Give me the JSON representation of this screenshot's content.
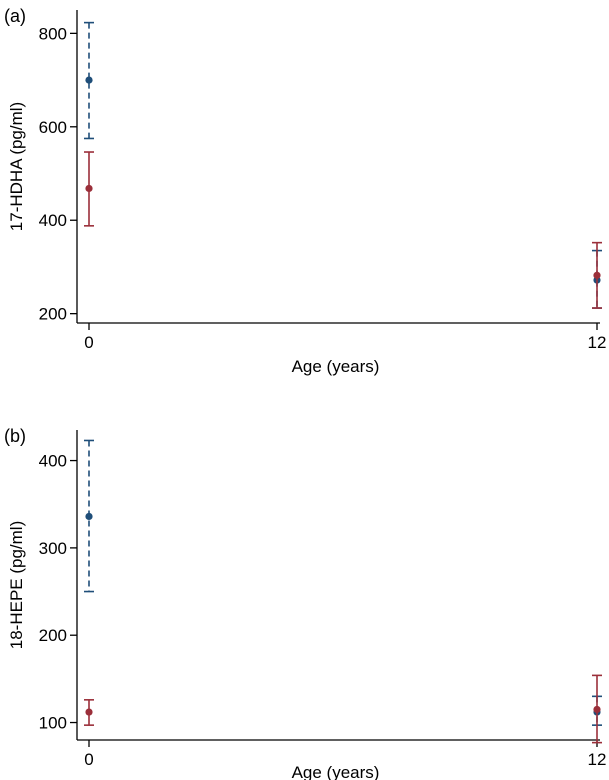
{
  "colors": {
    "blue": "#1f4e79",
    "red": "#9b2f3a"
  },
  "chart_data": [
    {
      "type": "scatter",
      "panel_label": "(a)",
      "xlabel": "Age (years)",
      "ylabel": "17-HDHA (pg/ml)",
      "x_ticks": [
        0,
        12
      ],
      "x_tick_labels": [
        "0",
        "12"
      ],
      "y_ticks": [
        200,
        400,
        600,
        800
      ],
      "y_tick_labels": [
        "200",
        "400",
        "600",
        "800"
      ],
      "xlim": [
        -0.05,
        12
      ],
      "ylim": [
        180,
        850
      ],
      "series": [
        {
          "color": "blue",
          "line_style": "dashed",
          "points": [
            {
              "x": 0,
              "y": 700,
              "low": 575,
              "high": 823
            },
            {
              "x": 12,
              "y": 272,
              "low": 212,
              "high": 335
            }
          ]
        },
        {
          "color": "red",
          "line_style": "solid",
          "points": [
            {
              "x": 0,
              "y": 468,
              "low": 388,
              "high": 546
            },
            {
              "x": 12,
              "y": 282,
              "low": 212,
              "high": 352
            }
          ]
        }
      ]
    },
    {
      "type": "scatter",
      "panel_label": "(b)",
      "xlabel": "Age (years)",
      "ylabel": "18-HEPE (pg/ml)",
      "x_ticks": [
        0,
        12
      ],
      "x_tick_labels": [
        "0",
        "12"
      ],
      "y_ticks": [
        100,
        200,
        300,
        400
      ],
      "y_tick_labels": [
        "100",
        "200",
        "300",
        "400"
      ],
      "xlim": [
        -0.05,
        12
      ],
      "ylim": [
        80,
        435
      ],
      "series": [
        {
          "color": "blue",
          "line_style": "dashed",
          "points": [
            {
              "x": 0,
              "y": 336,
              "low": 250,
              "high": 423
            },
            {
              "x": 12,
              "y": 112,
              "low": 97,
              "high": 130
            }
          ]
        },
        {
          "color": "red",
          "line_style": "solid",
          "points": [
            {
              "x": 0,
              "y": 112,
              "low": 97,
              "high": 126
            },
            {
              "x": 12,
              "y": 115,
              "low": 77,
              "high": 154
            }
          ]
        }
      ]
    }
  ]
}
